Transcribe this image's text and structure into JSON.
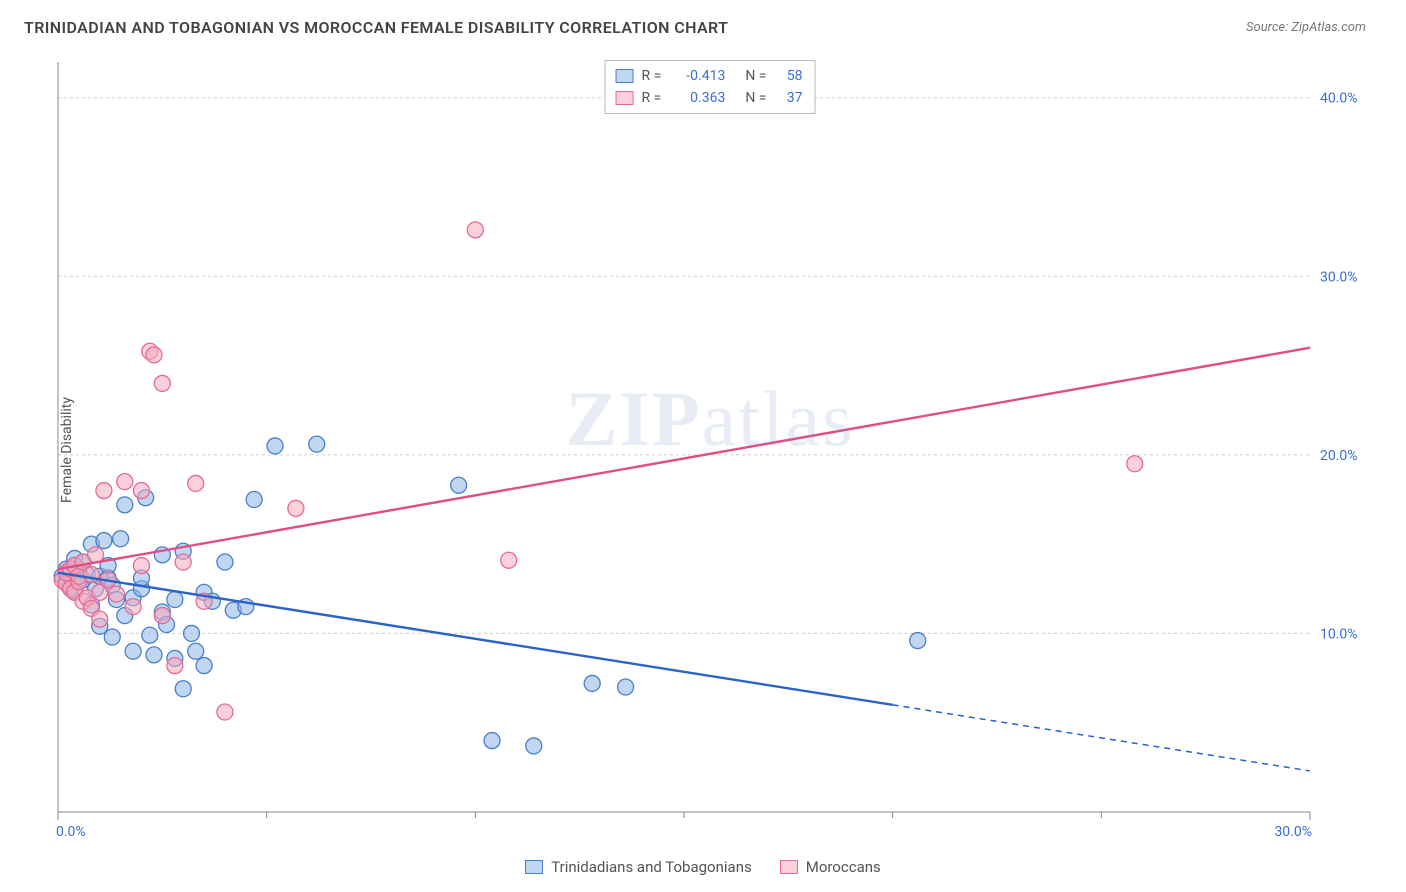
{
  "header": {
    "title": "TRINIDADIAN AND TOBAGONIAN VS MOROCCAN FEMALE DISABILITY CORRELATION CHART",
    "source": "Source: ZipAtlas.com"
  },
  "y_axis_label": "Female Disability",
  "watermark": {
    "bold": "ZIP",
    "light": "atlas"
  },
  "chart": {
    "type": "scatter",
    "xlim": [
      0,
      30
    ],
    "ylim": [
      0,
      42
    ],
    "x_ticks": [
      0,
      30
    ],
    "x_tick_labels": [
      "0.0%",
      "30.0%"
    ],
    "x_minor_ticks": [
      5,
      10,
      15,
      20,
      25
    ],
    "y_ticks": [
      10,
      20,
      30,
      40
    ],
    "y_tick_labels": [
      "10.0%",
      "20.0%",
      "30.0%",
      "40.0%"
    ],
    "grid_color": "#cccccc",
    "axis_color": "#888888",
    "background_color": "#ffffff",
    "marker_radius": 8,
    "series": [
      {
        "name": "Trinidadians and Tobagonians",
        "color_fill": "rgba(140,180,230,0.55)",
        "color_stroke": "#4a80c8",
        "R": "-0.413",
        "N": "58",
        "trend": {
          "x1": 0,
          "y1": 13.4,
          "x2": 20,
          "y2": 6.0,
          "color": "#2a62c8",
          "dash_from_x": 20,
          "dash_to_x": 30,
          "dash_to_y": 2.3
        },
        "points": [
          [
            0.1,
            13.2
          ],
          [
            0.2,
            13.6
          ],
          [
            0.2,
            12.8
          ],
          [
            0.3,
            13.4
          ],
          [
            0.3,
            12.6
          ],
          [
            0.4,
            13.8
          ],
          [
            0.4,
            14.2
          ],
          [
            0.4,
            12.4
          ],
          [
            0.5,
            12.9
          ],
          [
            0.5,
            13.5
          ],
          [
            0.6,
            13.0
          ],
          [
            0.6,
            14.0
          ],
          [
            0.7,
            13.3
          ],
          [
            0.8,
            11.6
          ],
          [
            0.8,
            15.0
          ],
          [
            0.9,
            12.5
          ],
          [
            1.0,
            10.4
          ],
          [
            1.0,
            13.2
          ],
          [
            1.1,
            15.2
          ],
          [
            1.2,
            13.1
          ],
          [
            1.2,
            13.8
          ],
          [
            1.3,
            9.8
          ],
          [
            1.3,
            12.7
          ],
          [
            1.4,
            11.9
          ],
          [
            1.5,
            15.3
          ],
          [
            1.6,
            17.2
          ],
          [
            1.6,
            11.0
          ],
          [
            1.8,
            9.0
          ],
          [
            1.8,
            12.0
          ],
          [
            2.0,
            12.5
          ],
          [
            2.0,
            13.1
          ],
          [
            2.1,
            17.6
          ],
          [
            2.2,
            9.9
          ],
          [
            2.3,
            8.8
          ],
          [
            2.5,
            14.4
          ],
          [
            2.5,
            11.2
          ],
          [
            2.6,
            10.5
          ],
          [
            2.8,
            8.6
          ],
          [
            2.8,
            11.9
          ],
          [
            3.0,
            14.6
          ],
          [
            3.0,
            6.9
          ],
          [
            3.2,
            10.0
          ],
          [
            3.3,
            9.0
          ],
          [
            3.5,
            12.3
          ],
          [
            3.5,
            8.2
          ],
          [
            3.7,
            11.8
          ],
          [
            4.0,
            14.0
          ],
          [
            4.2,
            11.3
          ],
          [
            4.5,
            11.5
          ],
          [
            4.7,
            17.5
          ],
          [
            5.2,
            20.5
          ],
          [
            6.2,
            20.6
          ],
          [
            9.6,
            18.3
          ],
          [
            10.4,
            4.0
          ],
          [
            11.4,
            3.7
          ],
          [
            12.8,
            7.2
          ],
          [
            13.6,
            7.0
          ],
          [
            20.6,
            9.6
          ]
        ]
      },
      {
        "name": "Moroccans",
        "color_fill": "rgba(245,170,190,0.55)",
        "color_stroke": "#e56b94",
        "R": "0.363",
        "N": "37",
        "trend": {
          "x1": 0,
          "y1": 13.6,
          "x2": 30,
          "y2": 26.0,
          "color": "#e14d84"
        },
        "points": [
          [
            0.1,
            13.0
          ],
          [
            0.2,
            12.8
          ],
          [
            0.2,
            13.4
          ],
          [
            0.3,
            12.5
          ],
          [
            0.3,
            13.6
          ],
          [
            0.4,
            12.3
          ],
          [
            0.4,
            13.8
          ],
          [
            0.5,
            12.9
          ],
          [
            0.5,
            13.2
          ],
          [
            0.6,
            11.8
          ],
          [
            0.6,
            14.0
          ],
          [
            0.7,
            12.0
          ],
          [
            0.8,
            13.3
          ],
          [
            0.8,
            11.4
          ],
          [
            0.9,
            14.4
          ],
          [
            1.0,
            10.8
          ],
          [
            1.0,
            12.3
          ],
          [
            1.1,
            18.0
          ],
          [
            1.2,
            13.0
          ],
          [
            1.4,
            12.2
          ],
          [
            1.6,
            18.5
          ],
          [
            1.8,
            11.5
          ],
          [
            2.0,
            13.8
          ],
          [
            2.0,
            18.0
          ],
          [
            2.2,
            25.8
          ],
          [
            2.3,
            25.6
          ],
          [
            2.5,
            11.0
          ],
          [
            2.5,
            24.0
          ],
          [
            2.8,
            8.2
          ],
          [
            3.0,
            14.0
          ],
          [
            3.3,
            18.4
          ],
          [
            3.5,
            11.8
          ],
          [
            4.0,
            5.6
          ],
          [
            5.7,
            17.0
          ],
          [
            10.0,
            32.6
          ],
          [
            10.8,
            14.1
          ],
          [
            25.8,
            19.5
          ]
        ]
      }
    ]
  },
  "stat_legend": {
    "rows": [
      {
        "series": 0,
        "R_label": "R =",
        "N_label": "N ="
      },
      {
        "series": 1,
        "R_label": "R =",
        "N_label": "N ="
      }
    ]
  },
  "bottom_legend": {
    "items": [
      {
        "series": 0
      },
      {
        "series": 1
      }
    ]
  }
}
